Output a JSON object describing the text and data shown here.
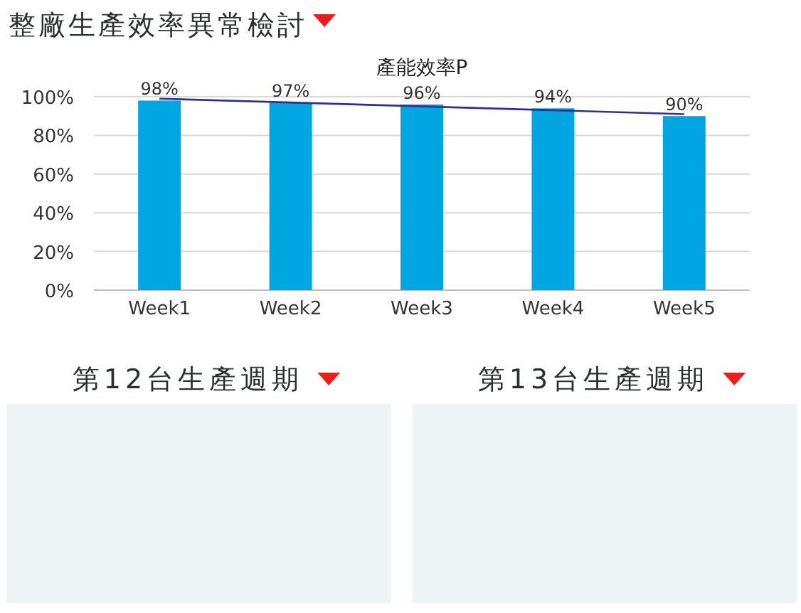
{
  "chart_data": [
    {
      "type": "bar",
      "title": "產能效率P",
      "annotations": [
        "整廠生產效率異常檢討"
      ],
      "categories": [
        "Week1",
        "Week2",
        "Week3",
        "Week4",
        "Week5"
      ],
      "series": [
        {
          "type": "bar",
          "color": "#00a6e2",
          "values": [
            98,
            97,
            96,
            94,
            90
          ],
          "value_labels": [
            "98%",
            "97%",
            "96%",
            "94%",
            "90%"
          ]
        },
        {
          "type": "line",
          "color": "#2e3192",
          "values": [
            99,
            97,
            95,
            93,
            91
          ],
          "line_style": "solid",
          "marker": "none"
        }
      ],
      "ylim": [
        0,
        100
      ],
      "yticks": [
        {
          "value": 0,
          "label": "0%"
        },
        {
          "value": 20,
          "label": "20%"
        },
        {
          "value": 40,
          "label": "40%"
        },
        {
          "value": 60,
          "label": "60%"
        },
        {
          "value": 80,
          "label": "80%"
        },
        {
          "value": 100,
          "label": "100%"
        }
      ],
      "grid": "y"
    },
    {
      "type": "other",
      "title": "第12台生產週期"
    },
    {
      "type": "other",
      "title": "第13台生產週期"
    }
  ]
}
